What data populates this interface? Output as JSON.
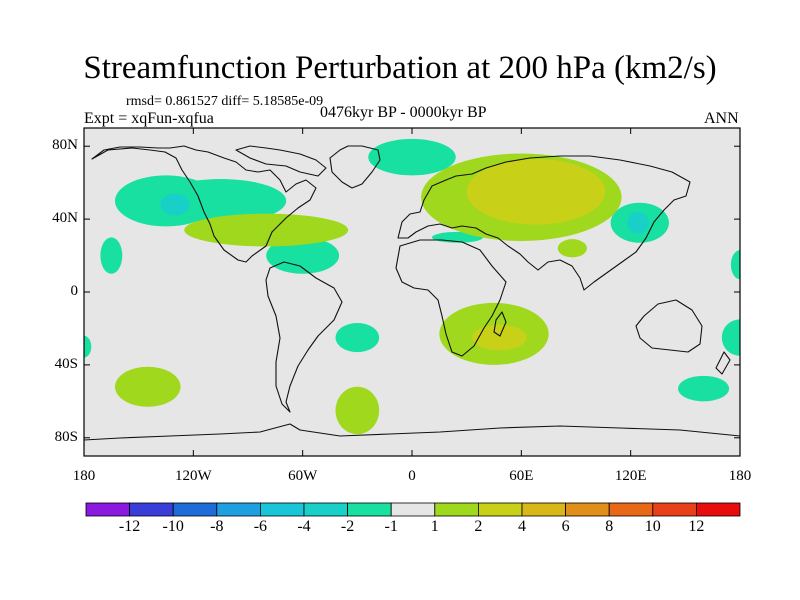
{
  "title": "Streamfunction Perturbation at 200 hPa (km2/s)",
  "stats": "rmsd= 0.861527 diff= 5.18585e-09",
  "experiment": "Expt = xqFun-xqfua",
  "period": "0476kyr BP - 0000kyr BP",
  "season": "ANN",
  "map": {
    "projection": "cylindrical equidistant",
    "lon_range": [
      -180,
      180
    ],
    "lat_range": [
      -90,
      90
    ],
    "background_color": "#e6e6e6",
    "y_ticks": [
      {
        "lat": 80,
        "label": "80N"
      },
      {
        "lat": 40,
        "label": "40N"
      },
      {
        "lat": 0,
        "label": "0"
      },
      {
        "lat": -40,
        "label": "40S"
      },
      {
        "lat": -80,
        "label": "80S"
      }
    ],
    "x_ticks": [
      {
        "lon": -180,
        "label": "180"
      },
      {
        "lon": -120,
        "label": "120W"
      },
      {
        "lon": -60,
        "label": "60W"
      },
      {
        "lon": 0,
        "label": "0"
      },
      {
        "lon": 60,
        "label": "60E"
      },
      {
        "lon": 120,
        "label": "120E"
      },
      {
        "lon": 180,
        "label": "180"
      }
    ],
    "anomalies": [
      {
        "lon": -135,
        "lat": 50,
        "rlon": 28,
        "rlat": 14,
        "level": -1
      },
      {
        "lon": -105,
        "lat": 50,
        "rlon": 36,
        "rlat": 12,
        "level": -1
      },
      {
        "lon": -130,
        "lat": 48,
        "rlon": 8,
        "rlat": 6,
        "level": -2
      },
      {
        "lon": -165,
        "lat": 20,
        "rlon": 6,
        "rlat": 10,
        "level": -1
      },
      {
        "lon": -60,
        "lat": 20,
        "rlon": 20,
        "rlat": 10,
        "level": -1
      },
      {
        "lon": 0,
        "lat": 74,
        "rlon": 24,
        "rlat": 10,
        "level": -1
      },
      {
        "lon": -30,
        "lat": -25,
        "rlon": 12,
        "rlat": 8,
        "level": -1
      },
      {
        "lon": 25,
        "lat": 30,
        "rlon": 14,
        "rlat": 3,
        "level": -1
      },
      {
        "lon": 125,
        "lat": 38,
        "rlon": 16,
        "rlat": 11,
        "level": -1
      },
      {
        "lon": 124,
        "lat": 38,
        "rlon": 6,
        "rlat": 6,
        "level": -2
      },
      {
        "lon": 180,
        "lat": 15,
        "rlon": 5,
        "rlat": 8,
        "level": -1
      },
      {
        "lon": 180,
        "lat": -25,
        "rlon": 10,
        "rlat": 10,
        "level": -1
      },
      {
        "lon": -180,
        "lat": -30,
        "rlon": 4,
        "rlat": 6,
        "level": -1
      },
      {
        "lon": 160,
        "lat": -53,
        "rlon": 14,
        "rlat": 7,
        "level": -1
      },
      {
        "lon": -80,
        "lat": 34,
        "rlon": 45,
        "rlat": 9,
        "level": 1
      },
      {
        "lon": 60,
        "lat": 52,
        "rlon": 55,
        "rlat": 24,
        "level": 1
      },
      {
        "lon": 68,
        "lat": 55,
        "rlon": 38,
        "rlat": 18,
        "level": 2
      },
      {
        "lon": 45,
        "lat": -23,
        "rlon": 30,
        "rlat": 17,
        "level": 1
      },
      {
        "lon": 48,
        "lat": -25,
        "rlon": 15,
        "rlat": 7,
        "level": 2
      },
      {
        "lon": -145,
        "lat": -52,
        "rlon": 18,
        "rlat": 11,
        "level": 1
      },
      {
        "lon": -30,
        "lat": -65,
        "rlon": 12,
        "rlat": 13,
        "level": 1
      },
      {
        "lon": 88,
        "lat": 24,
        "rlon": 8,
        "rlat": 5,
        "level": 1
      }
    ]
  },
  "colorbar": {
    "colors": [
      "#8a1ae0",
      "#3a3ed8",
      "#1e6cd8",
      "#1ea0e0",
      "#18c6d8",
      "#18d0c8",
      "#18e0a0",
      "#e6e6e6",
      "#a0d81e",
      "#c8d018",
      "#d8b818",
      "#e09018",
      "#e86818",
      "#e84018",
      "#e80c0c"
    ],
    "labels": [
      "-12",
      "-10",
      "-8",
      "-6",
      "-4",
      "-2",
      "-1",
      "1",
      "2",
      "4",
      "6",
      "8",
      "10",
      "12"
    ]
  }
}
